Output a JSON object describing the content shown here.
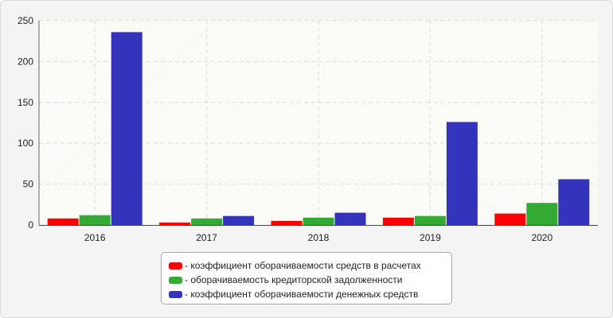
{
  "chart_data": {
    "type": "bar",
    "categories": [
      "2016",
      "2017",
      "2018",
      "2019",
      "2020"
    ],
    "series": [
      {
        "name": "- коэффициент оборачиваемости средств в расчетах",
        "color": "#ff0000",
        "values": [
          8,
          3,
          5,
          9,
          14
        ]
      },
      {
        "name": "- оборачиваемость кредиторской задолженности",
        "color": "#33aa33",
        "values": [
          12,
          8,
          9,
          11,
          27
        ]
      },
      {
        "name": "- коэффициент оборачиваемости денежных средств",
        "color": "#3333bb",
        "values": [
          236,
          11,
          15,
          126,
          56
        ]
      }
    ],
    "yticks": [
      "0",
      "50",
      "100",
      "150",
      "200",
      "250"
    ],
    "ylim": [
      0,
      250
    ],
    "grid": true,
    "legend_position": "bottom"
  }
}
